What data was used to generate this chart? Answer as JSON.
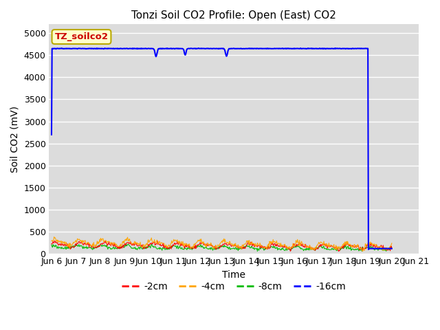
{
  "title": "Tonzi Soil CO2 Profile: Open (East) CO2",
  "ylabel": "Soil CO2 (mV)",
  "xlabel": "Time",
  "ylim": [
    0,
    5200
  ],
  "yticks": [
    0,
    500,
    1000,
    1500,
    2000,
    2500,
    3000,
    3500,
    4000,
    4500,
    5000
  ],
  "xtick_labels": [
    "Jun 6",
    "Jun 7",
    "Jun 8",
    "Jun 9",
    "Jun 10",
    "Jun 11",
    "Jun 12",
    "Jun 13",
    "Jun 14",
    "Jun 15",
    "Jun 16",
    "Jun 17",
    "Jun 18",
    "Jun 19",
    "Jun 20",
    "Jun 21"
  ],
  "colors": {
    "minus2cm": "#ff0000",
    "minus4cm": "#ffa500",
    "minus8cm": "#00bb00",
    "minus16cm": "#0000ff"
  },
  "legend_labels": [
    "-2cm",
    "-4cm",
    "-8cm",
    "-16cm"
  ],
  "dataset_label": "TZ_soilco2",
  "fig_bg_color": "#ffffff",
  "plot_bg_color": "#dcdcdc",
  "title_fontsize": 11,
  "axis_label_fontsize": 10,
  "tick_fontsize": 9
}
